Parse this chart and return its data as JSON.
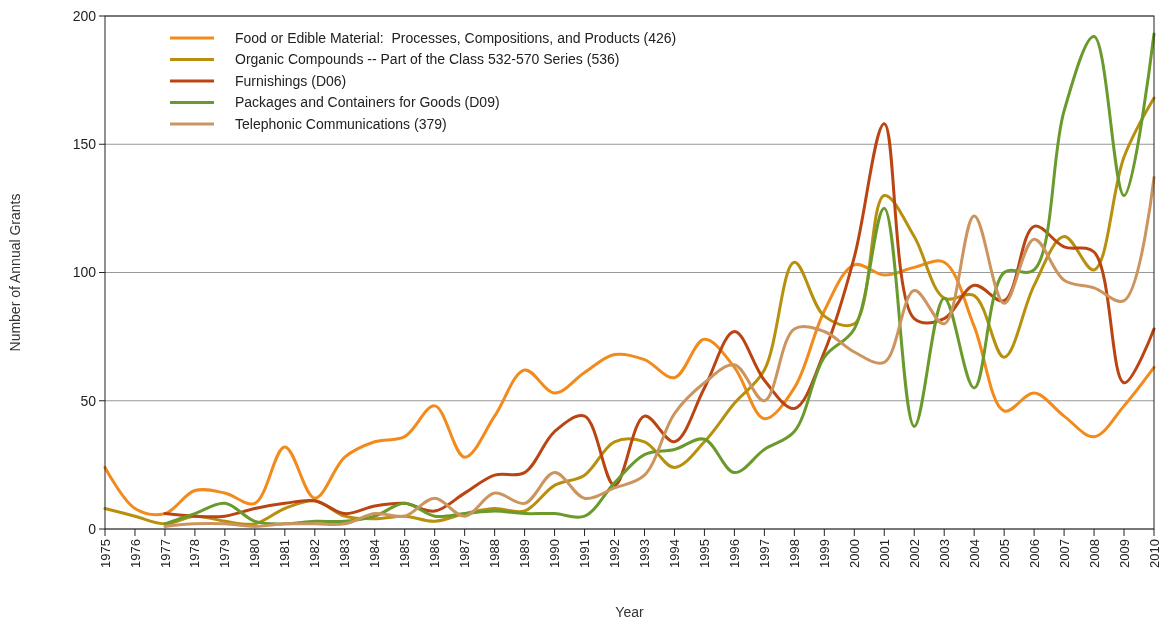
{
  "chart_data": {
    "type": "line",
    "xlabel": "Year",
    "ylabel": "Number of Annual Grants",
    "categories": [
      "1975",
      "1976",
      "1977",
      "1978",
      "1979",
      "1980",
      "1981",
      "1982",
      "1983",
      "1984",
      "1985",
      "1986",
      "1987",
      "1988",
      "1989",
      "1990",
      "1991",
      "1992",
      "1993",
      "1994",
      "1995",
      "1996",
      "1997",
      "1998",
      "1999",
      "2000",
      "2001",
      "2002",
      "2003",
      "2004",
      "2005",
      "2006",
      "2007",
      "2008",
      "2009",
      "2010"
    ],
    "ylim": [
      0,
      200
    ],
    "yticks": [
      0,
      50,
      100,
      150,
      200
    ],
    "grid": "y",
    "legend": "top left",
    "line_style": "solid",
    "series": [
      {
        "name": "Food or Edible Material:  Processes, Compositions, and Products (426)",
        "color": "#f28a1c",
        "values": [
          24,
          8,
          6,
          15,
          14,
          10,
          32,
          12,
          28,
          34,
          36,
          48,
          28,
          44,
          62,
          53,
          61,
          68,
          66,
          59,
          74,
          63,
          43,
          55,
          85,
          103,
          99,
          102,
          104,
          79,
          46,
          53,
          44,
          36,
          48,
          63
        ]
      },
      {
        "name": "Organic Compounds -- Part of the Class 532-570 Series (536)",
        "color": "#b8900f",
        "values": [
          8,
          5,
          2,
          5,
          3,
          2,
          8,
          11,
          5,
          4,
          5,
          3,
          6,
          8,
          7,
          17,
          21,
          34,
          34,
          24,
          34,
          49,
          62,
          104,
          83,
          80,
          130,
          114,
          90,
          91,
          67,
          95,
          114,
          101,
          145,
          168
        ]
      },
      {
        "name": "Furnishings (D06)",
        "color": "#bb4512",
        "values": [
          null,
          null,
          6,
          5,
          5,
          8,
          10,
          11,
          6,
          9,
          10,
          7,
          14,
          21,
          22,
          38,
          44,
          17,
          44,
          34,
          55,
          77,
          58,
          47,
          69,
          106,
          158,
          82,
          82,
          95,
          89,
          118,
          110,
          108,
          57,
          78
        ]
      },
      {
        "name": "Packages and Containers for Goods (D09)",
        "color": "#6a9a2c",
        "values": [
          null,
          null,
          2,
          6,
          10,
          3,
          2,
          3,
          3,
          5,
          10,
          5,
          6,
          7,
          6,
          6,
          5,
          18,
          29,
          31,
          35,
          22,
          31,
          38,
          67,
          78,
          125,
          40,
          90,
          55,
          100,
          101,
          163,
          192,
          130,
          193
        ]
      },
      {
        "name": "Telephonic Communications (379)",
        "color": "#cc9560",
        "values": [
          null,
          null,
          1,
          2,
          2,
          1,
          2,
          2,
          2,
          6,
          5,
          12,
          5,
          14,
          10,
          22,
          12,
          16,
          21,
          45,
          57,
          64,
          50,
          78,
          77,
          69,
          65,
          93,
          80,
          122,
          88,
          113,
          97,
          94,
          89,
          137
        ]
      }
    ]
  }
}
